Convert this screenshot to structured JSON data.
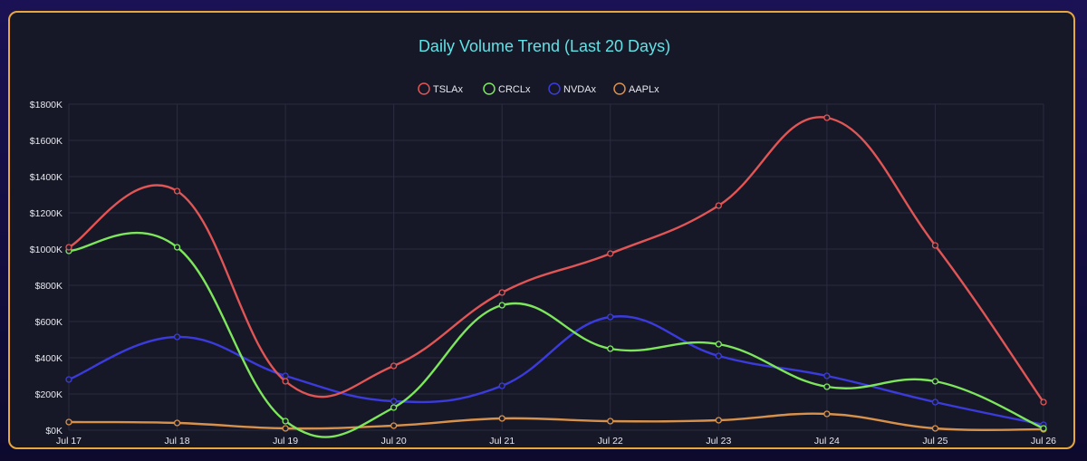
{
  "chart_data": {
    "type": "line",
    "title": "Daily Volume Trend (Last 20 Days)",
    "categories": [
      "Jul 17",
      "Jul 18",
      "Jul 19",
      "Jul 20",
      "Jul 21",
      "Jul 22",
      "Jul 23",
      "Jul 24",
      "Jul 25",
      "Jul 26"
    ],
    "y_ticks": [
      "$0K",
      "$200K",
      "$400K",
      "$600K",
      "$800K",
      "$1000K",
      "$1200K",
      "$1400K",
      "$1600K",
      "$1800K"
    ],
    "ylim": [
      0,
      1800
    ],
    "y_unit": "K",
    "grid": true,
    "legend_position": "top",
    "series": [
      {
        "name": "TSLAx",
        "color": "#e05555",
        "values": [
          1010,
          1320,
          270,
          355,
          760,
          975,
          1240,
          1725,
          1020,
          155
        ]
      },
      {
        "name": "CRCLx",
        "color": "#7ee65c",
        "values": [
          990,
          1010,
          50,
          125,
          690,
          450,
          475,
          240,
          270,
          10
        ]
      },
      {
        "name": "NVDAx",
        "color": "#3b3bdc",
        "values": [
          280,
          515,
          300,
          160,
          245,
          625,
          410,
          300,
          155,
          30
        ]
      },
      {
        "name": "AAPLx",
        "color": "#d8914a",
        "values": [
          45,
          40,
          10,
          25,
          65,
          50,
          55,
          90,
          10,
          5
        ]
      }
    ]
  }
}
